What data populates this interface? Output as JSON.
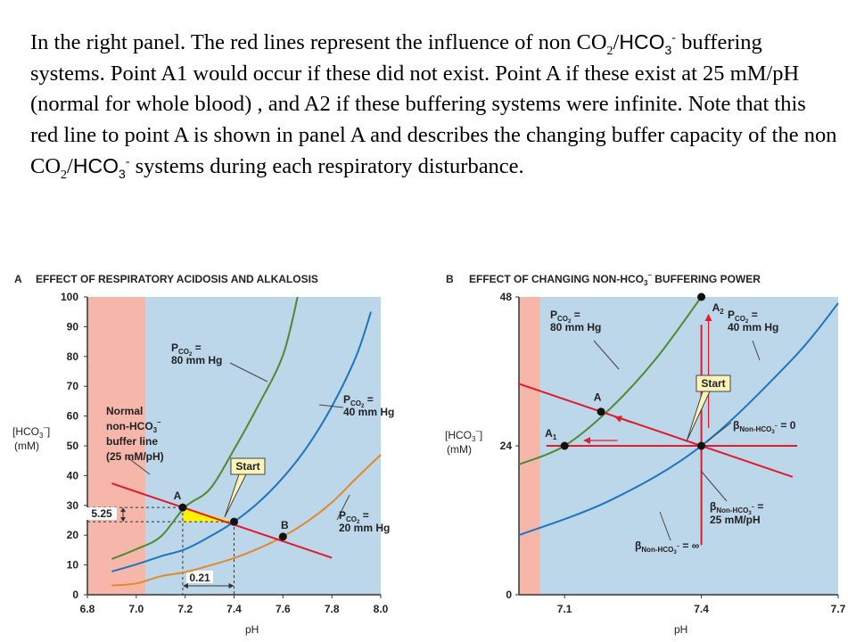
{
  "description": {
    "part1": "In the right panel. The red lines represent the influence of non CO",
    "sub1": "2",
    "slash1": "/",
    "hco3_1": "HCO",
    "sub2": "3",
    "sup1": "-",
    "part2": " buffering systems.  Point A1 would occur if these did not exist. Point A if these exist at 25 mM/pH (normal for whole blood) , and A2 if these buffering systems were infinite.  Note that this red line to point A is shown in panel A and describes the changing buffer capacity of the non CO",
    "sub3": "2",
    "slash2": "/",
    "hco3_2": "HCO",
    "sub4": "3",
    "sup2": "-",
    "part3": " systems during each respiratory disturbance."
  },
  "colors": {
    "acid_zone": "#f6b6a9",
    "plot_bg": "#bcd6ea",
    "green": "#4e8a2e",
    "blue": "#1d76bd",
    "orange": "#e08a2a",
    "red": "#e21b2b",
    "yellow": "#fff200",
    "label_box": "#fbf3b8"
  },
  "chart_data": [
    {
      "type": "line",
      "panel_letter": "A",
      "title": "EFFECT OF RESPIRATORY ACIDOSIS AND ALKALOSIS",
      "xlabel": "pH",
      "ylabel": "[HCO3-] (mM)",
      "ylabel_line1": "[HCO",
      "ylabel_sub": "3",
      "ylabel_sup": "–",
      "ylabel_close": "]",
      "ylabel_line2": "(mM)",
      "xlim": [
        6.8,
        8.0
      ],
      "ylim": [
        0,
        100
      ],
      "xticks": [
        "6.8",
        "7.0",
        "7.2",
        "7.4",
        "7.6",
        "7.8",
        "8.0"
      ],
      "yticks": [
        "0",
        "10",
        "20",
        "30",
        "40",
        "50",
        "60",
        "70",
        "80",
        "90",
        "100"
      ],
      "acid_zone_upper_ph": 7.0,
      "series": [
        {
          "name": "PCO2 = 80 mm Hg",
          "color": "green",
          "x": [
            6.9,
            7.0,
            7.1,
            7.2,
            7.3,
            7.4,
            7.5,
            7.6,
            7.66
          ],
          "y": [
            12,
            15.3,
            19.5,
            29.5,
            35.4,
            48.8,
            63.7,
            80.4,
            100
          ]
        },
        {
          "name": "PCO2 = 40 mm Hg",
          "color": "blue",
          "x": [
            6.9,
            7.0,
            7.1,
            7.2,
            7.3,
            7.4,
            7.5,
            7.6,
            7.7,
            7.8,
            7.9,
            7.96
          ],
          "y": [
            7.8,
            10.2,
            12.9,
            15.3,
            19.5,
            24.5,
            31,
            39.3,
            49.8,
            63.2,
            80.2,
            95
          ]
        },
        {
          "name": "PCO2 = 20 mm Hg",
          "color": "orange",
          "x": [
            6.9,
            7.0,
            7.1,
            7.2,
            7.3,
            7.4,
            7.5,
            7.6,
            7.7,
            7.8,
            7.9,
            8.0
          ],
          "y": [
            3.1,
            3.8,
            6.2,
            7.6,
            9.8,
            12.3,
            15.5,
            19.5,
            24.6,
            31,
            39.1,
            47
          ]
        },
        {
          "name": "Normal non-HCO3- buffer line (25 mM/pH)",
          "color": "red",
          "x": [
            6.9,
            7.8
          ],
          "y": [
            37.4,
            12.4
          ]
        }
      ],
      "points": [
        {
          "label": "A",
          "x": 7.19,
          "y": 29.3
        },
        {
          "label": "Start",
          "x": 7.4,
          "y": 24.5
        },
        {
          "label": "B",
          "x": 7.6,
          "y": 19.5
        }
      ],
      "annotations": {
        "delta_hco3": "5.25",
        "delta_ph": "0.21",
        "series_labels": [
          {
            "pco": "P",
            "sub": "CO",
            "sub2": "2",
            "eq": " =",
            "line2": "80 mm Hg"
          },
          {
            "pco": "P",
            "sub": "CO",
            "sub2": "2",
            "eq": " =",
            "line2": "40 mm Hg"
          },
          {
            "pco": "P",
            "sub": "CO",
            "sub2": "2",
            "eq": " =",
            "line2": "20 mm Hg"
          }
        ],
        "buffer_line_label": [
          "Normal",
          "non-HCO",
          "buffer line",
          "(25 mM/pH)"
        ],
        "buffer_line_label_sub": "3",
        "buffer_line_label_sup": "–",
        "start_label": "Start"
      }
    },
    {
      "type": "line",
      "panel_letter": "B",
      "title_part1": "EFFECT OF CHANGING NON-HCO",
      "title_sub": "3",
      "title_sup": "–",
      "title_part2": " BUFFERING POWER",
      "xlabel": "pH",
      "ylabel_line1": "[HCO",
      "ylabel_sub": "3",
      "ylabel_sup": "–",
      "ylabel_close": "]",
      "ylabel_line2": "(mM)",
      "xlim": [
        7.0,
        7.7
      ],
      "ylim": [
        0,
        48
      ],
      "xticks": [
        "7.1",
        "7.4",
        "7.7"
      ],
      "yticks": [
        "0",
        "24",
        "48"
      ],
      "acid_zone_upper_ph": 7.05,
      "series": [
        {
          "name": "PCO2 = 80 mm Hg",
          "color": "green",
          "x": [
            7.0,
            7.1,
            7.2,
            7.3,
            7.4
          ],
          "y": [
            21,
            24,
            30,
            38,
            48
          ]
        },
        {
          "name": "PCO2 = 40 mm Hg",
          "color": "blue",
          "x": [
            7.0,
            7.2,
            7.4,
            7.6,
            7.7
          ],
          "y": [
            9.6,
            15.2,
            24,
            38,
            47
          ]
        },
        {
          "name": "βNon-HCO3- = 25 mM/pH",
          "color": "red",
          "x": [
            7.0,
            7.6
          ],
          "y": [
            34,
            19
          ]
        },
        {
          "name": "βNon-HCO3- = 0",
          "color": "red",
          "x": [
            7.06,
            7.61
          ],
          "y": [
            24,
            24
          ]
        },
        {
          "name": "βNon-HCO3- = ∞",
          "color": "red",
          "x": [
            7.4,
            7.4
          ],
          "y": [
            8,
            43.5
          ]
        }
      ],
      "points": [
        {
          "label": "A",
          "x": 7.18,
          "y": 29.5
        },
        {
          "label": "A1",
          "x": 7.1,
          "y": 24
        },
        {
          "label": "A2",
          "x": 7.4,
          "y": 48
        },
        {
          "label": "Start",
          "x": 7.4,
          "y": 24
        }
      ],
      "annotations": {
        "series_labels": [
          {
            "pco": "P",
            "sub": "CO",
            "sub2": "2",
            "eq": " =",
            "line2": "80 mm Hg"
          },
          {
            "pco": "P",
            "sub": "CO",
            "sub2": "2",
            "eq": " =",
            "line2": "40 mm Hg"
          }
        ],
        "beta_labels": [
          {
            "beta": "β",
            "sub": "Non-HCO",
            "sub2": "3",
            "sup": "–",
            "rest": " = 0"
          },
          {
            "beta": "β",
            "sub": "Non-HCO",
            "sub2": "3",
            "sup": "–",
            "rest": " =",
            "line2": "25 mM/pH"
          },
          {
            "beta": "β",
            "sub": "Non-HCO",
            "sub2": "3",
            "sup": "–",
            "rest": " = ∞"
          }
        ],
        "start_label": "Start"
      }
    }
  ]
}
